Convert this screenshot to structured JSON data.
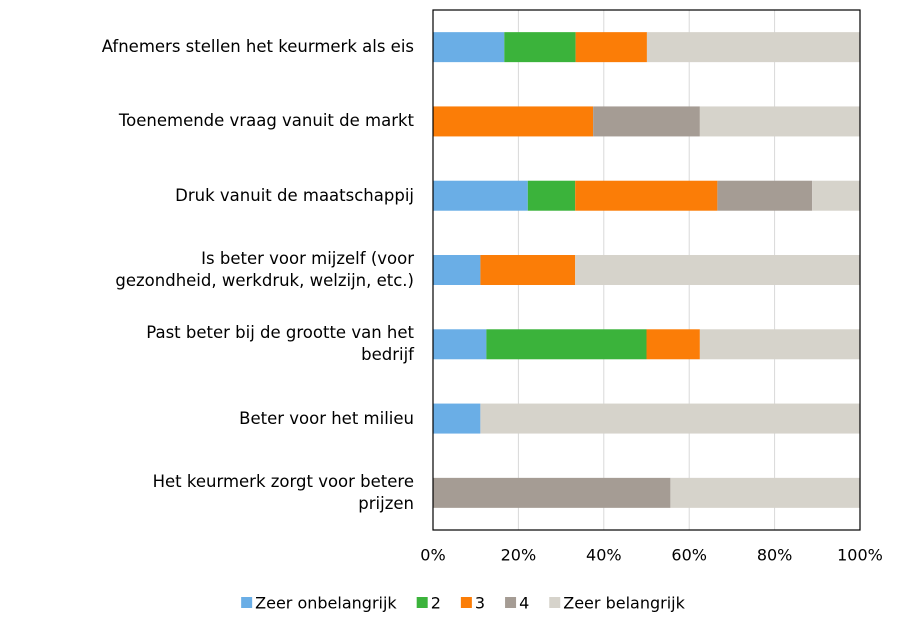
{
  "chart_data": {
    "type": "stacked_barh",
    "categories": [
      "Afnemers stellen het keurmerk als eis",
      "Toenemende vraag vanuit de markt",
      "Druk vanuit de maatschappij",
      "Is beter voor mijzelf (voor\ngezondheid, werkdruk, welzijn, etc.)",
      "Past beter bij de grootte van het\nbedrijf",
      "Beter voor het milieu",
      "Het keurmerk zorgt voor betere\nprijzen"
    ],
    "series": [
      {
        "name": "Zeer onbelangrijk",
        "color": "#6aaee6",
        "values": [
          16.7,
          0,
          22.2,
          11.1,
          12.5,
          11.1,
          0
        ]
      },
      {
        "name": "2",
        "color": "#3bb33b",
        "values": [
          16.7,
          0,
          11.1,
          0,
          37.5,
          0,
          0
        ]
      },
      {
        "name": "3",
        "color": "#fb7d07",
        "values": [
          16.7,
          37.5,
          33.3,
          22.2,
          12.5,
          0,
          0
        ]
      },
      {
        "name": "4",
        "color": "#a59c94",
        "values": [
          0,
          25,
          22.2,
          0,
          0,
          0,
          55.6
        ]
      },
      {
        "name": "Zeer belangrijk",
        "color": "#d6d3cb",
        "values": [
          50,
          37.5,
          11.1,
          66.7,
          37.5,
          88.9,
          44.4
        ]
      }
    ],
    "xlim": [
      0,
      100
    ],
    "xticks": [
      {
        "value": 0,
        "label": "0%"
      },
      {
        "value": 20,
        "label": "20%"
      },
      {
        "value": 40,
        "label": "40%"
      },
      {
        "value": 60,
        "label": "60%"
      },
      {
        "value": 80,
        "label": "80%"
      },
      {
        "value": 100,
        "label": "100%"
      }
    ],
    "grid": true,
    "legend": "bottom"
  }
}
